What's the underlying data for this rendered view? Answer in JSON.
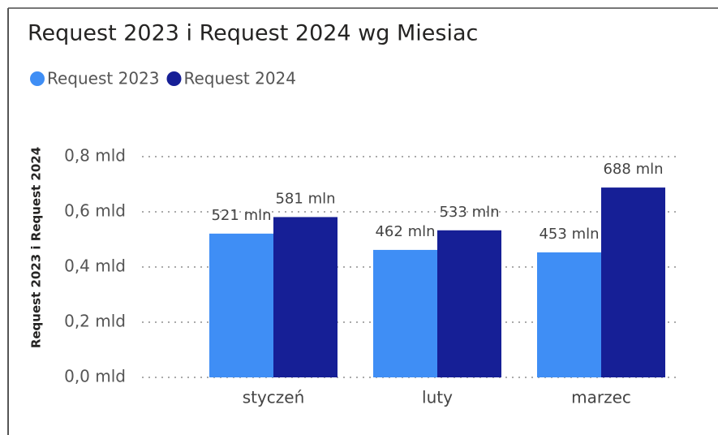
{
  "chart_data": {
    "type": "bar",
    "title": "Request 2023 i Request 2024 wg Miesiac",
    "y_label": "Request 2023 i Request 2024",
    "categories": [
      "styczeń",
      "luty",
      "marzec"
    ],
    "series": [
      {
        "name": "Request 2023",
        "color": "#3f8ef5",
        "values": [
          0.521,
          0.462,
          0.453
        ],
        "value_labels": [
          "521 mln",
          "462 mln",
          "453 mln"
        ]
      },
      {
        "name": "Request 2024",
        "color": "#161f96",
        "values": [
          0.581,
          0.533,
          0.688
        ],
        "value_labels": [
          "581 mln",
          "533 mln",
          "688 mln"
        ]
      }
    ],
    "ylim": [
      0,
      0.8
    ],
    "yticks": [
      {
        "value": 0,
        "label": "0,0 mld"
      },
      {
        "value": 0.2,
        "label": "0,2 mld"
      },
      {
        "value": 0.4,
        "label": "0,4 mld"
      },
      {
        "value": 0.6,
        "label": "0,6 mld"
      },
      {
        "value": 0.8,
        "label": "0,8 mld"
      }
    ],
    "grid": true,
    "legend": "top-left"
  }
}
